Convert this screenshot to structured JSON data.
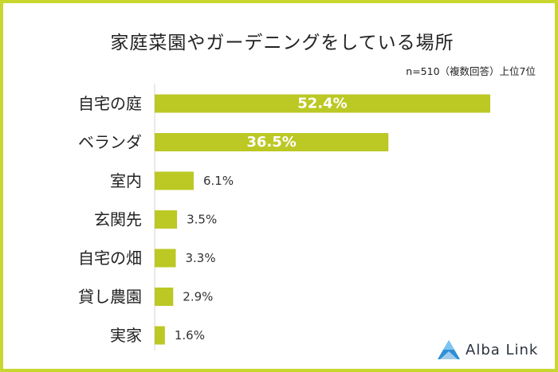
{
  "chart_data": {
    "type": "bar",
    "orientation": "horizontal",
    "title": "家庭菜園やガーデニングをしている場所",
    "note": "n=510（複数回答）上位7位",
    "categories": [
      "自宅の庭",
      "ベランダ",
      "室内",
      "玄関先",
      "自宅の畑",
      "貸し農園",
      "実家"
    ],
    "values": [
      52.4,
      36.5,
      6.1,
      3.5,
      3.3,
      2.9,
      1.6
    ],
    "value_labels": [
      "52.4%",
      "36.5%",
      "6.1%",
      "3.5%",
      "3.3%",
      "2.9%",
      "1.6%"
    ],
    "xlabel": "",
    "ylabel": "",
    "xlim": [
      0,
      60
    ],
    "grid": false,
    "legend": "none"
  },
  "colors": {
    "bar": "#bcc824",
    "frame": "#c9d62e",
    "label_inside": "#ffffff",
    "label_outside": "#333333",
    "logo": "#2f8fd6"
  },
  "logo": {
    "text": "Alba Link",
    "icon": "alba-link-logo-icon"
  }
}
